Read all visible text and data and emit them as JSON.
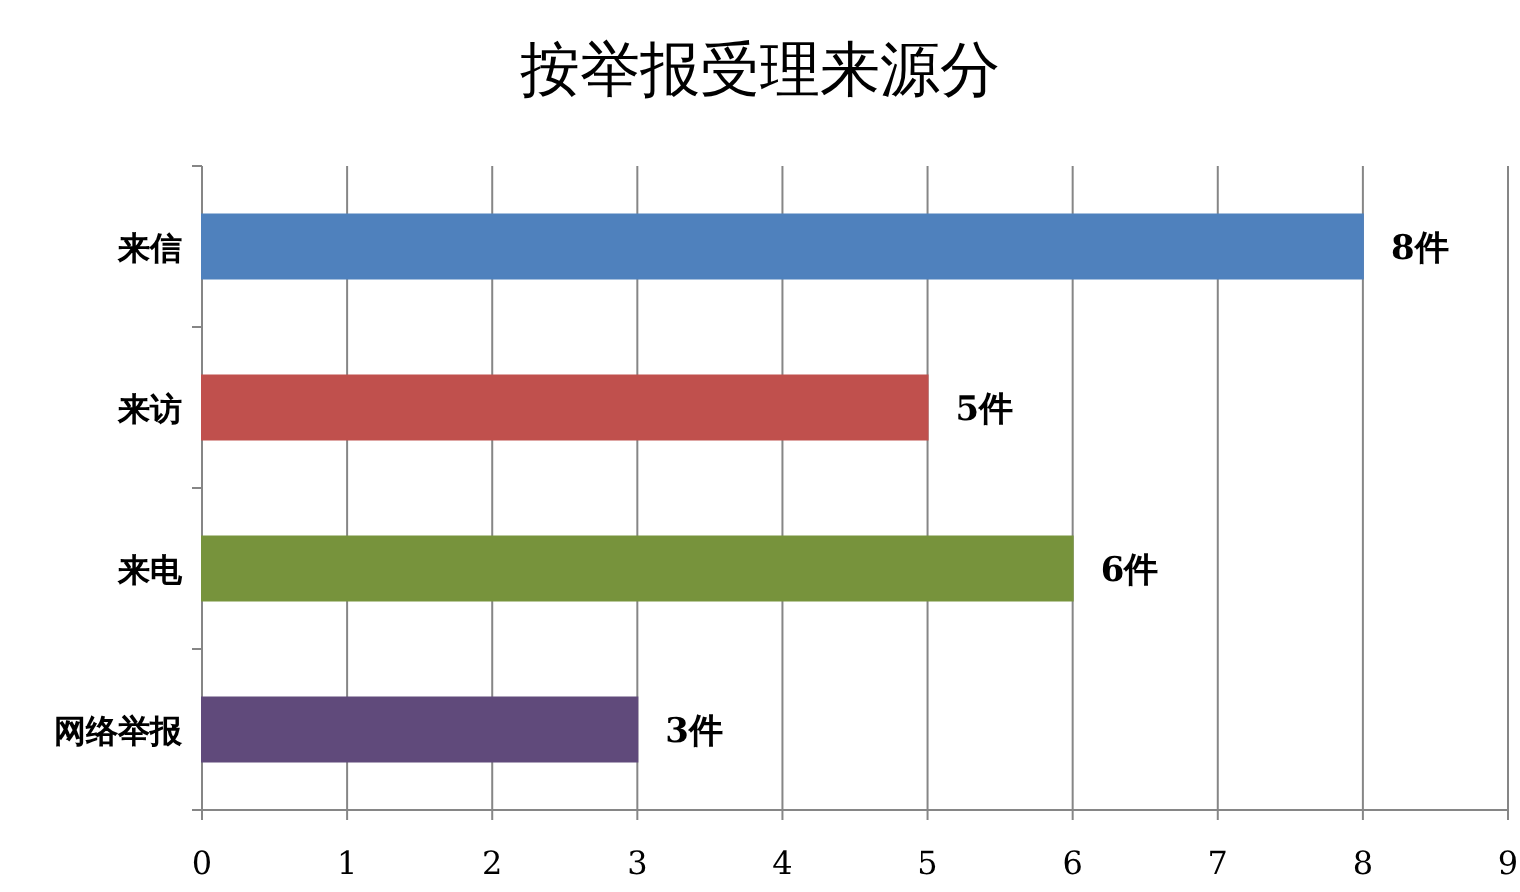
{
  "chart_data": {
    "type": "bar",
    "orientation": "horizontal",
    "title": "按举报受理来源分",
    "categories": [
      "来信",
      "来访",
      "来电",
      "网络举报"
    ],
    "values": [
      8,
      5,
      6,
      3
    ],
    "colors": [
      "#4f81bd",
      "#c0504d",
      "#77933c",
      "#604a7b"
    ],
    "value_labels": [
      "8件",
      "5件",
      "6件",
      "3件"
    ],
    "xlim": [
      0,
      9
    ],
    "xticks": [
      0,
      1,
      2,
      3,
      4,
      5,
      6,
      7,
      8,
      9
    ],
    "grid": "x"
  }
}
